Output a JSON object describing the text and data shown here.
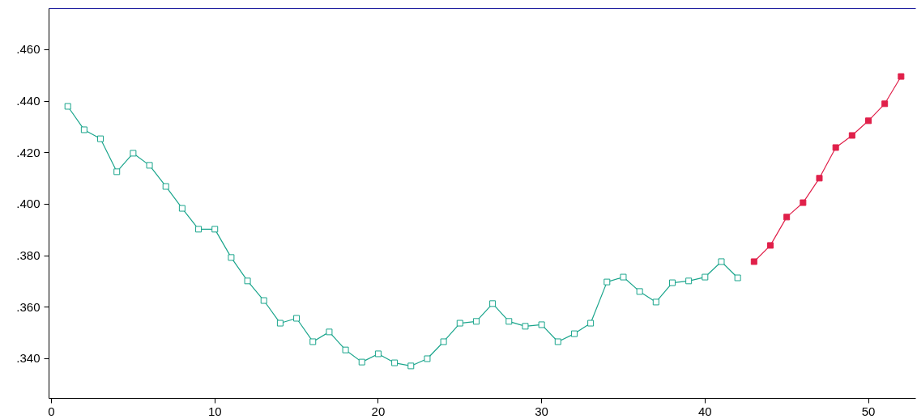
{
  "chart_data": {
    "type": "line",
    "marker": "square",
    "line_style": "solid",
    "grid": false,
    "xlim": [
      -0.15,
      52.9
    ],
    "ylim": [
      0.3246,
      0.476
    ],
    "xticks": [
      0,
      10,
      20,
      30,
      40,
      50
    ],
    "yticks": [
      {
        "value": 0.34,
        "label": ".340"
      },
      {
        "value": 0.36,
        "label": ".360"
      },
      {
        "value": 0.38,
        "label": ".380"
      },
      {
        "value": 0.4,
        "label": ".400"
      },
      {
        "value": 0.42,
        "label": ".420"
      },
      {
        "value": 0.44,
        "label": ".440"
      },
      {
        "value": 0.46,
        "label": ".460"
      }
    ],
    "series": [
      {
        "color": "#1aa58c",
        "x": [
          1,
          2,
          3,
          4,
          5,
          6,
          7,
          8,
          9,
          10,
          11,
          12,
          13,
          14,
          15,
          16,
          17,
          18,
          19,
          20,
          21,
          22,
          23,
          24,
          25,
          26,
          27,
          28,
          29,
          30,
          31,
          32,
          33,
          34,
          35,
          36,
          37,
          38,
          39,
          40,
          41,
          42
        ],
        "values": [
          0.438,
          0.4289,
          0.4254,
          0.4126,
          0.4198,
          0.4151,
          0.4069,
          0.3984,
          0.3903,
          0.3903,
          0.3793,
          0.3702,
          0.3626,
          0.3538,
          0.3557,
          0.3466,
          0.3504,
          0.3434,
          0.3387,
          0.3419,
          0.3384,
          0.3372,
          0.34,
          0.3466,
          0.3538,
          0.3545,
          0.3614,
          0.3545,
          0.3526,
          0.3532,
          0.3466,
          0.3497,
          0.3538,
          0.3698,
          0.3717,
          0.3661,
          0.362,
          0.3695,
          0.3702,
          0.3717,
          0.3777,
          0.3714
        ]
      },
      {
        "color": "#e0204a",
        "x": [
          43,
          44,
          45,
          46,
          47,
          48,
          49,
          50,
          51,
          52
        ],
        "values": [
          0.3777,
          0.384,
          0.395,
          0.4006,
          0.4101,
          0.422,
          0.4267,
          0.4324,
          0.439,
          0.4496
        ]
      }
    ]
  }
}
